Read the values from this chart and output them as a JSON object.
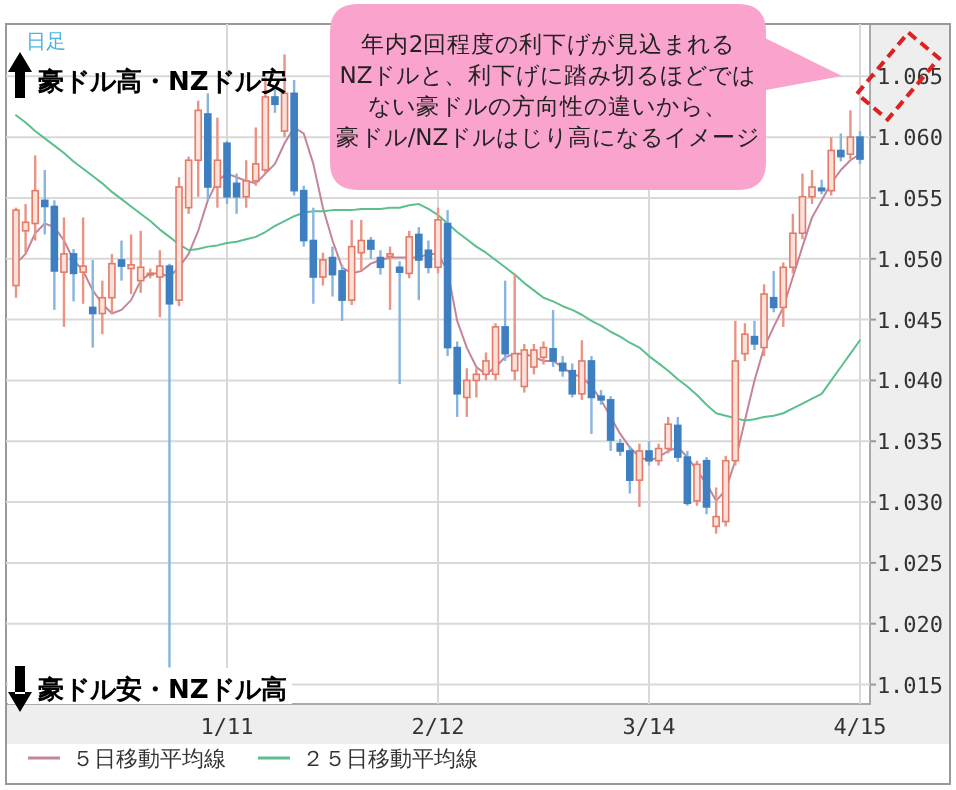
{
  "chart_data": {
    "type": "candlestick",
    "categories": [
      null,
      null,
      null,
      null,
      null,
      null,
      null,
      null,
      null,
      null,
      null,
      null,
      null,
      null,
      null,
      null,
      null,
      null,
      null,
      null,
      null,
      null,
      "1/11",
      null,
      null,
      null,
      null,
      null,
      null,
      null,
      null,
      null,
      null,
      null,
      null,
      null,
      null,
      null,
      null,
      null,
      null,
      null,
      null,
      null,
      "2/12",
      null,
      null,
      null,
      null,
      null,
      null,
      null,
      null,
      null,
      null,
      null,
      null,
      null,
      null,
      null,
      null,
      null,
      null,
      null,
      null,
      null,
      "3/14",
      null,
      null,
      null,
      null,
      null,
      null,
      null,
      null,
      null,
      null,
      null,
      null,
      null,
      null,
      null,
      null,
      null,
      null,
      null,
      null,
      null,
      "4/15"
    ],
    "ohlc": [
      [
        1.0478,
        1.0542,
        1.0468,
        1.054
      ],
      [
        1.0523,
        1.0545,
        1.0505,
        1.053
      ],
      [
        1.0529,
        1.0585,
        1.0515,
        1.0556
      ],
      [
        1.0548,
        1.0573,
        1.052,
        1.0543
      ],
      [
        1.0543,
        1.0548,
        1.0458,
        1.049
      ],
      [
        1.0489,
        1.0534,
        1.0444,
        1.0504
      ],
      [
        1.0504,
        1.0508,
        1.0465,
        1.0488
      ],
      [
        1.0489,
        1.0534,
        1.0463,
        1.0494
      ],
      [
        1.046,
        1.0499,
        1.0427,
        1.0455
      ],
      [
        1.0455,
        1.0482,
        1.0438,
        1.0468
      ],
      [
        1.0468,
        1.0504,
        1.0455,
        1.0496
      ],
      [
        1.0499,
        1.0515,
        1.0482,
        1.0494
      ],
      [
        1.0492,
        1.052,
        1.0471,
        1.0495
      ],
      [
        1.0482,
        1.0523,
        1.0472,
        1.0493
      ],
      [
        1.0487,
        1.0492,
        1.0484,
        1.0488
      ],
      [
        1.0485,
        1.0507,
        1.0452,
        1.0494
      ],
      [
        1.0494,
        1.0496,
        1.0164,
        1.0463
      ],
      [
        1.0466,
        1.0567,
        1.0461,
        1.0559
      ],
      [
        1.0542,
        1.0584,
        1.0537,
        1.0581
      ],
      [
        1.0581,
        1.063,
        1.0551,
        1.0622
      ],
      [
        1.0619,
        1.0636,
        1.0548,
        1.0559
      ],
      [
        1.0559,
        1.0616,
        1.0542,
        1.0581
      ],
      [
        1.0595,
        1.0597,
        1.0545,
        1.0551
      ],
      [
        1.0562,
        1.057,
        1.0537,
        1.0551
      ],
      [
        1.0551,
        1.0581,
        1.0542,
        1.0564
      ],
      [
        1.0564,
        1.0608,
        1.056,
        1.0578
      ],
      [
        1.0573,
        1.0649,
        1.057,
        1.0633
      ],
      [
        1.0633,
        1.0641,
        1.062,
        1.0627
      ],
      [
        1.0605,
        1.0668,
        1.06,
        1.0636
      ],
      [
        1.0636,
        1.0647,
        1.0552,
        1.0556
      ],
      [
        1.0556,
        1.056,
        1.051,
        1.0515
      ],
      [
        1.0515,
        1.0542,
        1.0463,
        1.0485
      ],
      [
        1.0485,
        1.0505,
        1.0478,
        1.0499
      ],
      [
        1.0501,
        1.051,
        1.0469,
        1.0487
      ],
      [
        1.049,
        1.0495,
        1.0449,
        1.0466
      ],
      [
        1.0466,
        1.0532,
        1.0462,
        1.051
      ],
      [
        1.0505,
        1.0532,
        1.049,
        1.0515
      ],
      [
        1.0515,
        1.0518,
        1.05,
        1.0508
      ],
      [
        1.0501,
        1.0507,
        1.0487,
        1.0493
      ],
      [
        1.0502,
        1.051,
        1.0458,
        1.0504
      ],
      [
        1.0493,
        1.0498,
        1.0397,
        1.0489
      ],
      [
        1.0488,
        1.0523,
        1.0484,
        1.0518
      ],
      [
        1.052,
        1.0526,
        1.0466,
        1.0499
      ],
      [
        1.0507,
        1.0515,
        1.0488,
        1.0493
      ],
      [
        1.0493,
        1.0542,
        1.0488,
        1.0532
      ],
      [
        1.0529,
        1.054,
        1.042,
        1.0427
      ],
      [
        1.0427,
        1.0432,
        1.037,
        1.0389
      ],
      [
        1.0386,
        1.041,
        1.037,
        1.04
      ],
      [
        1.04,
        1.041,
        1.0386,
        1.0405
      ],
      [
        1.0405,
        1.0423,
        1.04,
        1.0416
      ],
      [
        1.0405,
        1.0447,
        1.04,
        1.0444
      ],
      [
        1.0444,
        1.0482,
        1.0416,
        1.0422
      ],
      [
        1.0408,
        1.0488,
        1.04,
        1.0422
      ],
      [
        1.0395,
        1.043,
        1.039,
        1.0425
      ],
      [
        1.0411,
        1.043,
        1.0405,
        1.0425
      ],
      [
        1.0419,
        1.0432,
        1.0413,
        1.0427
      ],
      [
        1.0426,
        1.0458,
        1.0411,
        1.0416
      ],
      [
        1.0414,
        1.042,
        1.0403,
        1.0408
      ],
      [
        1.0408,
        1.0414,
        1.0386,
        1.0389
      ],
      [
        1.0389,
        1.0433,
        1.0384,
        1.0416
      ],
      [
        1.0416,
        1.042,
        1.0356,
        1.0386
      ],
      [
        1.0387,
        1.0392,
        1.038,
        1.0384
      ],
      [
        1.0384,
        1.0387,
        1.0342,
        1.0351
      ],
      [
        1.0348,
        1.0352,
        1.0338,
        1.0342
      ],
      [
        1.0342,
        1.0346,
        1.0307,
        1.0318
      ],
      [
        1.0318,
        1.0348,
        1.0296,
        1.0342
      ],
      [
        1.0342,
        1.035,
        1.033,
        1.0334
      ],
      [
        1.0334,
        1.0348,
        1.033,
        1.0344
      ],
      [
        1.0344,
        1.037,
        1.034,
        1.0364
      ],
      [
        1.0363,
        1.037,
        1.0333,
        1.0337
      ],
      [
        1.0337,
        1.0342,
        1.0297,
        1.0299
      ],
      [
        1.0301,
        1.0334,
        1.0297,
        1.0331
      ],
      [
        1.0334,
        1.0337,
        1.029,
        1.0296
      ],
      [
        1.028,
        1.0312,
        1.0274,
        1.0288
      ],
      [
        1.0284,
        1.0338,
        1.028,
        1.0334
      ],
      [
        1.0334,
        1.0449,
        1.033,
        1.0416
      ],
      [
        1.0422,
        1.0447,
        1.0416,
        1.0438
      ],
      [
        1.0436,
        1.0449,
        1.0425,
        1.043
      ],
      [
        1.0427,
        1.0479,
        1.042,
        1.0471
      ],
      [
        1.0468,
        1.049,
        1.0456,
        1.046
      ],
      [
        1.046,
        1.0497,
        1.0444,
        1.0493
      ],
      [
        1.0493,
        1.0537,
        1.0488,
        1.0521
      ],
      [
        1.0521,
        1.057,
        1.0516,
        1.0551
      ],
      [
        1.0551,
        1.0573,
        1.0545,
        1.0559
      ],
      [
        1.0558,
        1.0565,
        1.0553,
        1.0556
      ],
      [
        1.0556,
        1.06,
        1.0552,
        1.0589
      ],
      [
        1.0589,
        1.0603,
        1.058,
        1.0584
      ],
      [
        1.0586,
        1.0622,
        1.0582,
        1.06
      ],
      [
        1.06,
        1.0605,
        1.0578,
        1.0582
      ]
    ],
    "series": [
      {
        "name": "５日移動平均線",
        "type": "line",
        "color": "#c4849a",
        "values": [
          1.0496,
          1.0504,
          1.0521,
          1.0529,
          1.0526,
          1.0515,
          1.0499,
          1.049,
          1.0474,
          1.0463,
          1.0455,
          1.0458,
          1.0466,
          1.0482,
          1.0488,
          1.0488,
          1.0485,
          1.0493,
          1.0504,
          1.0523,
          1.0548,
          1.0564,
          1.057,
          1.0567,
          1.0564,
          1.0562,
          1.057,
          1.0578,
          1.0595,
          1.0608,
          1.0603,
          1.0578,
          1.0542,
          1.0515,
          1.0493,
          1.0488,
          1.049,
          1.0496,
          1.0499,
          1.0501,
          1.0501,
          1.0501,
          1.0501,
          1.0504,
          1.0504,
          1.049,
          1.0449,
          1.0427,
          1.0411,
          1.0405,
          1.0411,
          1.0419,
          1.0422,
          1.0422,
          1.0419,
          1.0416,
          1.0416,
          1.0411,
          1.0405,
          1.0403,
          1.0395,
          1.0384,
          1.037,
          1.0356,
          1.0345,
          1.0337,
          1.0334,
          1.0337,
          1.0342,
          1.0345,
          1.0337,
          1.0326,
          1.0315,
          1.0301,
          1.031,
          1.0334,
          1.0367,
          1.04,
          1.0427,
          1.0444,
          1.046,
          1.0485,
          1.051,
          1.0534,
          1.0548,
          1.0562,
          1.0573,
          1.0581,
          1.0586
        ]
      },
      {
        "name": "２５日移動平均線",
        "type": "line",
        "color": "#5cbf8c",
        "values": [
          1.0618,
          1.0612,
          1.0605,
          1.0599,
          1.0593,
          1.0587,
          1.058,
          1.0574,
          1.0568,
          1.0562,
          1.0555,
          1.0549,
          1.0543,
          1.0537,
          1.0531,
          1.0524,
          1.0518,
          1.0512,
          1.0507,
          1.0508,
          1.051,
          1.0511,
          1.0513,
          1.0514,
          1.0516,
          1.0518,
          1.0522,
          1.0527,
          1.0531,
          1.0535,
          1.0538,
          1.0539,
          1.0539,
          1.054,
          1.054,
          1.054,
          1.0541,
          1.0541,
          1.0541,
          1.0542,
          1.0542,
          1.0544,
          1.0545,
          1.0541,
          1.0536,
          1.0529,
          1.0522,
          1.0516,
          1.051,
          1.0505,
          1.0499,
          1.0493,
          1.0487,
          1.048,
          1.0474,
          1.0468,
          1.0465,
          1.0461,
          1.0458,
          1.0454,
          1.0449,
          1.0445,
          1.044,
          1.0436,
          1.0431,
          1.0427,
          1.042,
          1.0414,
          1.0408,
          1.0401,
          1.0395,
          1.0388,
          1.038,
          1.0373,
          1.0371,
          1.0369,
          1.0367,
          1.0368,
          1.037,
          1.0371,
          1.0373,
          1.0377,
          1.0381,
          1.0385,
          1.0389,
          1.04,
          1.0411,
          1.0422,
          1.0433
        ]
      }
    ],
    "ylim": [
      1.0134,
      1.0693
    ],
    "yticks": [
      1.015,
      {
        "value": 1.02,
        "label": "1.020"
      },
      1.025,
      {
        "value": 1.03,
        "label": "1.030"
      },
      1.035,
      {
        "value": 1.04,
        "label": "1.040"
      },
      1.045,
      {
        "value": 1.05,
        "label": "1.050"
      },
      1.055,
      {
        "value": 1.06,
        "label": "1.060"
      },
      1.065
    ],
    "grid": true,
    "legend": "bottom",
    "annotations": [
      "日足",
      "豪ドル高・NZドル安",
      "豪ドル安・NZドル高",
      "年内2回程度の利下げが見込まれる",
      "NZドルと、利下げに踏み切るほどでは",
      "ない豪ドルの方向性の違いから、",
      "豪ドル/NZドルはじり高になるイメージ"
    ]
  }
}
